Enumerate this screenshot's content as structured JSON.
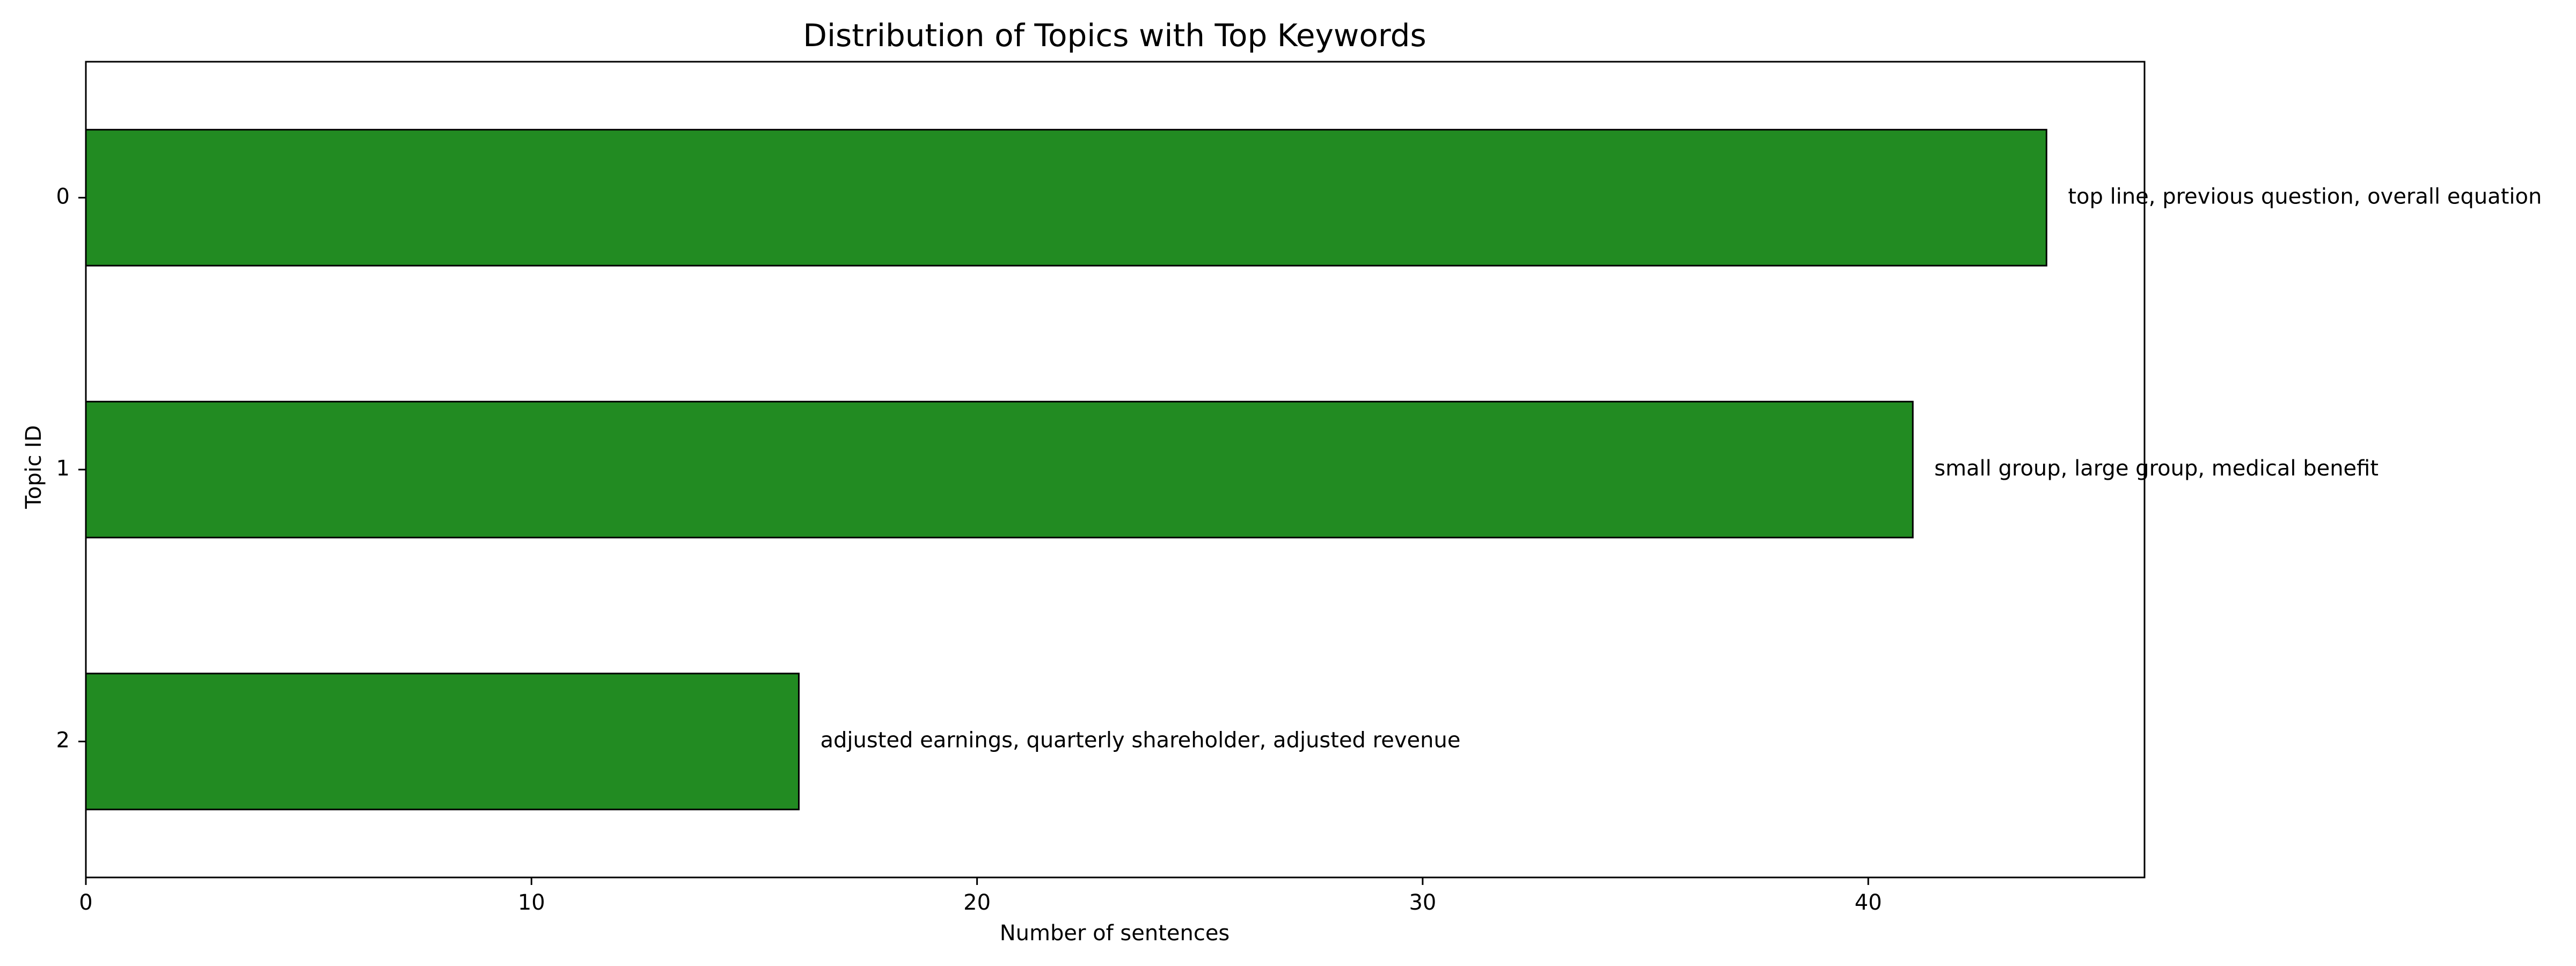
{
  "chart_data": {
    "type": "bar",
    "orientation": "horizontal",
    "title": "Distribution of Topics with Top Keywords",
    "xlabel": "Number of sentences",
    "ylabel": "Topic ID",
    "categories": [
      "0",
      "1",
      "2"
    ],
    "values": [
      44,
      41,
      16
    ],
    "data_labels": [
      "top line, previous question, overall equation",
      "small group, large group, medical benefit",
      "adjusted earnings, quarterly shareholder, adjusted revenue"
    ],
    "xlim": [
      0,
      46.2
    ],
    "xticks": [
      0,
      10,
      20,
      30,
      40
    ],
    "grid": false,
    "legend": "none",
    "bar_color": "#228b22",
    "edge_color": "#000000"
  }
}
